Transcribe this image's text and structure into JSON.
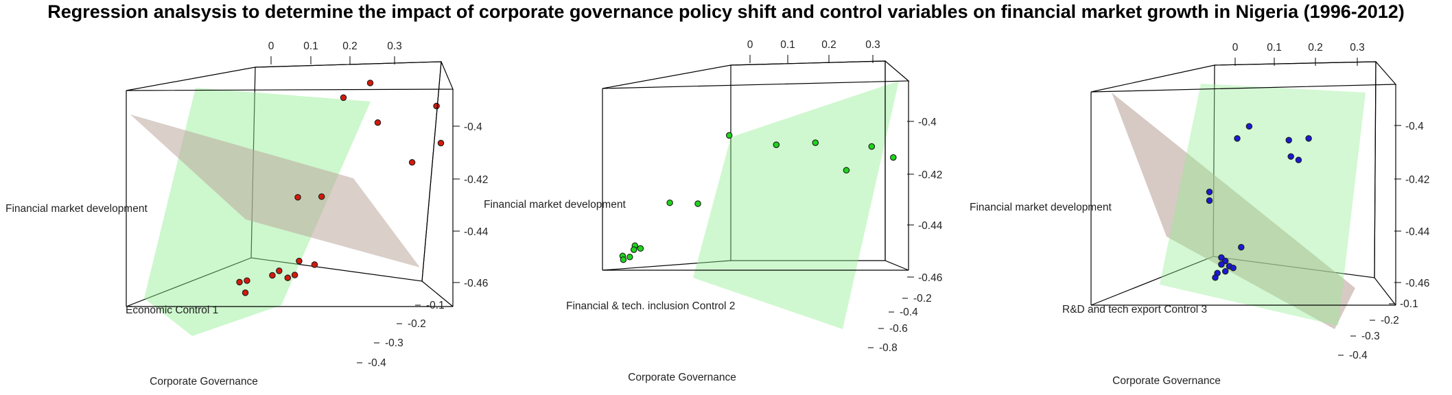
{
  "title": "Regression analsysis to determine the impact of corporate governance policy shift and control variables on financial market growth in Nigeria (1996-2012)",
  "chart_data": [
    {
      "type": "scatter3d",
      "x_label": "Corporate Governance",
      "y_label": "Economic Control 1",
      "z_label": "Financial market development",
      "x_ticks": [
        "0",
        "0.1",
        "0.2",
        "0.3"
      ],
      "y_ticks": [
        "-0.1",
        "-0.2",
        "-0.3",
        "-0.4"
      ],
      "z_ticks": [
        "-0.4",
        "-0.42",
        "-0.44",
        "-0.46"
      ],
      "point_color": "#d41a0c",
      "plane_colors": [
        "#90ee90",
        "#bca79d"
      ],
      "points": [
        {
          "x": 0.17,
          "y": -0.45,
          "z": -0.375
        },
        {
          "x": 0.1,
          "y": -0.43,
          "z": -0.382
        },
        {
          "x": 0.2,
          "y": -0.34,
          "z": -0.39
        },
        {
          "x": 0.35,
          "y": -0.39,
          "z": -0.384
        },
        {
          "x": 0.36,
          "y": -0.33,
          "z": -0.401
        },
        {
          "x": 0.29,
          "y": -0.2,
          "z": -0.403
        },
        {
          "x": 0.04,
          "y": -0.1,
          "z": -0.416
        },
        {
          "x": 0.09,
          "y": -0.12,
          "z": -0.417
        },
        {
          "x": 0.03,
          "y": -0.18,
          "z": -0.458
        },
        {
          "x": 0.07,
          "y": -0.15,
          "z": -0.458
        },
        {
          "x": -0.02,
          "y": -0.2,
          "z": -0.465
        },
        {
          "x": 0.02,
          "y": -0.18,
          "z": -0.466
        },
        {
          "x": -0.04,
          "y": -0.22,
          "z": -0.469
        },
        {
          "x": 0.0,
          "y": -0.2,
          "z": -0.469
        },
        {
          "x": -0.1,
          "y": -0.15,
          "z": -0.468
        },
        {
          "x": -0.08,
          "y": -0.12,
          "z": -0.472
        },
        {
          "x": -0.1,
          "y": -0.22,
          "z": -0.472
        }
      ]
    },
    {
      "type": "scatter3d",
      "x_label": "Corporate Governance",
      "y_label": "Financial & tech. inclusion Control 2",
      "z_label": "Financial market development",
      "x_ticks": [
        "0",
        "0.1",
        "0.2",
        "0.3"
      ],
      "y_ticks": [
        "-0.2",
        "-0.4",
        "-0.6",
        "-0.8"
      ],
      "z_ticks": [
        "-0.4",
        "-0.42",
        "-0.44",
        "-0.46"
      ],
      "point_color": "#1fd41c",
      "plane_colors": [
        "#90ee90"
      ],
      "points": [
        {
          "x": -0.05,
          "y": -0.3,
          "z": -0.385
        },
        {
          "x": 0.05,
          "y": -0.5,
          "z": -0.393
        },
        {
          "x": 0.15,
          "y": -0.55,
          "z": -0.392
        },
        {
          "x": 0.3,
          "y": -0.6,
          "z": -0.395
        },
        {
          "x": 0.35,
          "y": -0.3,
          "z": -0.4
        },
        {
          "x": 0.23,
          "y": -0.7,
          "z": -0.412
        },
        {
          "x": -0.18,
          "y": -0.2,
          "z": -0.43
        },
        {
          "x": -0.12,
          "y": -0.25,
          "z": -0.431
        },
        {
          "x": -0.28,
          "y": -0.3,
          "z": -0.46
        },
        {
          "x": -0.27,
          "y": -0.32,
          "z": -0.462
        },
        {
          "x": -0.29,
          "y": -0.34,
          "z": -0.463
        },
        {
          "x": -0.31,
          "y": -0.3,
          "z": -0.467
        },
        {
          "x": -0.3,
          "y": -0.34,
          "z": -0.468
        },
        {
          "x": -0.32,
          "y": -0.36,
          "z": -0.47
        }
      ]
    },
    {
      "type": "scatter3d",
      "x_label": "Corporate Governance",
      "y_label": "R&D and tech export Control 3",
      "z_label": "Financial market development",
      "x_ticks": [
        "0",
        "0.1",
        "0.2",
        "0.3"
      ],
      "y_ticks": [
        "-0.1",
        "-0.2",
        "-0.3",
        "-0.4"
      ],
      "z_ticks": [
        "-0.4",
        "-0.42",
        "-0.44",
        "-0.46"
      ],
      "point_color": "#1a1ad4",
      "plane_colors": [
        "#90ee90",
        "#bca79d"
      ],
      "points": [
        {
          "x": 0.02,
          "y": -0.2,
          "z": -0.382
        },
        {
          "x": -0.01,
          "y": -0.2,
          "z": -0.389
        },
        {
          "x": 0.12,
          "y": -0.2,
          "z": -0.39
        },
        {
          "x": 0.17,
          "y": -0.2,
          "z": -0.389
        },
        {
          "x": 0.12,
          "y": -0.25,
          "z": -0.403
        },
        {
          "x": 0.14,
          "y": -0.25,
          "z": -0.405
        },
        {
          "x": -0.08,
          "y": -0.2,
          "z": -0.42
        },
        {
          "x": -0.08,
          "y": -0.2,
          "z": -0.425
        },
        {
          "x": 0.0,
          "y": -0.2,
          "z": -0.452
        },
        {
          "x": -0.05,
          "y": -0.2,
          "z": -0.458
        },
        {
          "x": -0.04,
          "y": -0.2,
          "z": -0.46
        },
        {
          "x": -0.05,
          "y": -0.2,
          "z": -0.462
        },
        {
          "x": -0.03,
          "y": -0.2,
          "z": -0.463
        },
        {
          "x": -0.02,
          "y": -0.2,
          "z": -0.464
        },
        {
          "x": -0.04,
          "y": -0.2,
          "z": -0.466
        },
        {
          "x": -0.06,
          "y": -0.2,
          "z": -0.467
        },
        {
          "x": -0.07,
          "y": -0.22,
          "z": -0.471
        }
      ]
    }
  ]
}
